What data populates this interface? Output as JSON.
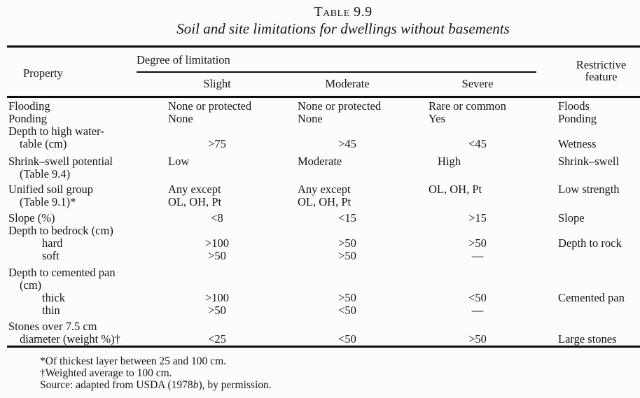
{
  "page": {
    "table_number": "Table 9.9",
    "title": "Soil and site limitations for dwellings without basements"
  },
  "header": {
    "property": "Property",
    "degree": "Degree of limitation",
    "slight": "Slight",
    "moderate": "Moderate",
    "severe": "Severe",
    "restrictive_l1": "Restrictive",
    "restrictive_l2": "feature"
  },
  "rows": [
    {
      "property": "Flooding",
      "slight": "None or protected",
      "moderate": "None or protected",
      "severe": "Rare or common",
      "restrictive": "Floods"
    },
    {
      "property": "Ponding",
      "slight": "None",
      "moderate": "None",
      "severe": "Yes",
      "restrictive": "Ponding"
    },
    {
      "property_l1": "Depth to high water-",
      "property_l2": "table (cm)",
      "slight": ">75",
      "moderate": ">45",
      "severe": "<45",
      "restrictive": "Wetness"
    },
    {
      "property_l1": "Shrink–swell potential",
      "property_l2": "(Table 9.4)",
      "slight": "Low",
      "moderate": "Moderate",
      "severe": "High",
      "restrictive": "Shrink–swell"
    },
    {
      "property_l1": "Unified soil group",
      "property_l2": "(Table 9.1)*",
      "slight_l1": "Any except",
      "slight_l2": "OL, OH, Pt",
      "moderate_l1": "Any except",
      "moderate_l2": "OL, OH, Pt",
      "severe": "OL, OH, Pt",
      "restrictive": "Low strength"
    },
    {
      "property": "Slope (%)",
      "slight": "<8",
      "moderate": "<15",
      "severe": ">15",
      "restrictive": "Slope"
    },
    {
      "property": "Depth to bedrock (cm)"
    },
    {
      "property": "hard",
      "slight": ">100",
      "moderate": ">50",
      "severe": ">50",
      "restrictive": "Depth to rock"
    },
    {
      "property": "soft",
      "slight": ">50",
      "moderate": ">50",
      "severe": "—"
    },
    {
      "property_l1": "Depth to cemented pan",
      "property_l2": "(cm)"
    },
    {
      "property": "thick",
      "slight": ">100",
      "moderate": ">50",
      "severe": "<50",
      "restrictive": "Cemented pan"
    },
    {
      "property": "thin",
      "slight": ">50",
      "moderate": "<50",
      "severe": "—"
    },
    {
      "property_l1": "Stones over 7.5 cm",
      "property_l2": "diameter (weight %)†",
      "slight": "<25",
      "moderate": "<50",
      "severe": ">50",
      "restrictive": "Large stones"
    }
  ],
  "footnotes": {
    "note1": "*Of thickest layer between 25 and 100 cm.",
    "note2": "†Weighted average to 100 cm.",
    "source_pre": "Source: adapted from USDA (1978",
    "source_italic": "b",
    "source_post": "), by permission."
  }
}
